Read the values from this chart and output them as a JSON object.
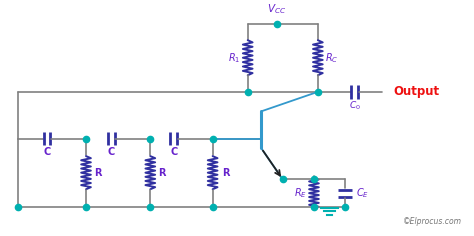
{
  "bg_color": "#ffffff",
  "wire_color": "#808080",
  "dot_color": "#00b0b0",
  "comp_color": "#3030a0",
  "label_color": "#6622cc",
  "transistor_color": "#3399cc",
  "output_color": "#ee1111",
  "watermark_color": "#777777",
  "watermark": "©Elprocus.com",
  "output_text": "Output",
  "vcc_text": "$V_{CC}$",
  "r1_text": "$R_1$",
  "rc_text": "$R_C$",
  "c0_text": "$C_0$",
  "re_text": "$R_E$",
  "ce_text": "$C_E$"
}
